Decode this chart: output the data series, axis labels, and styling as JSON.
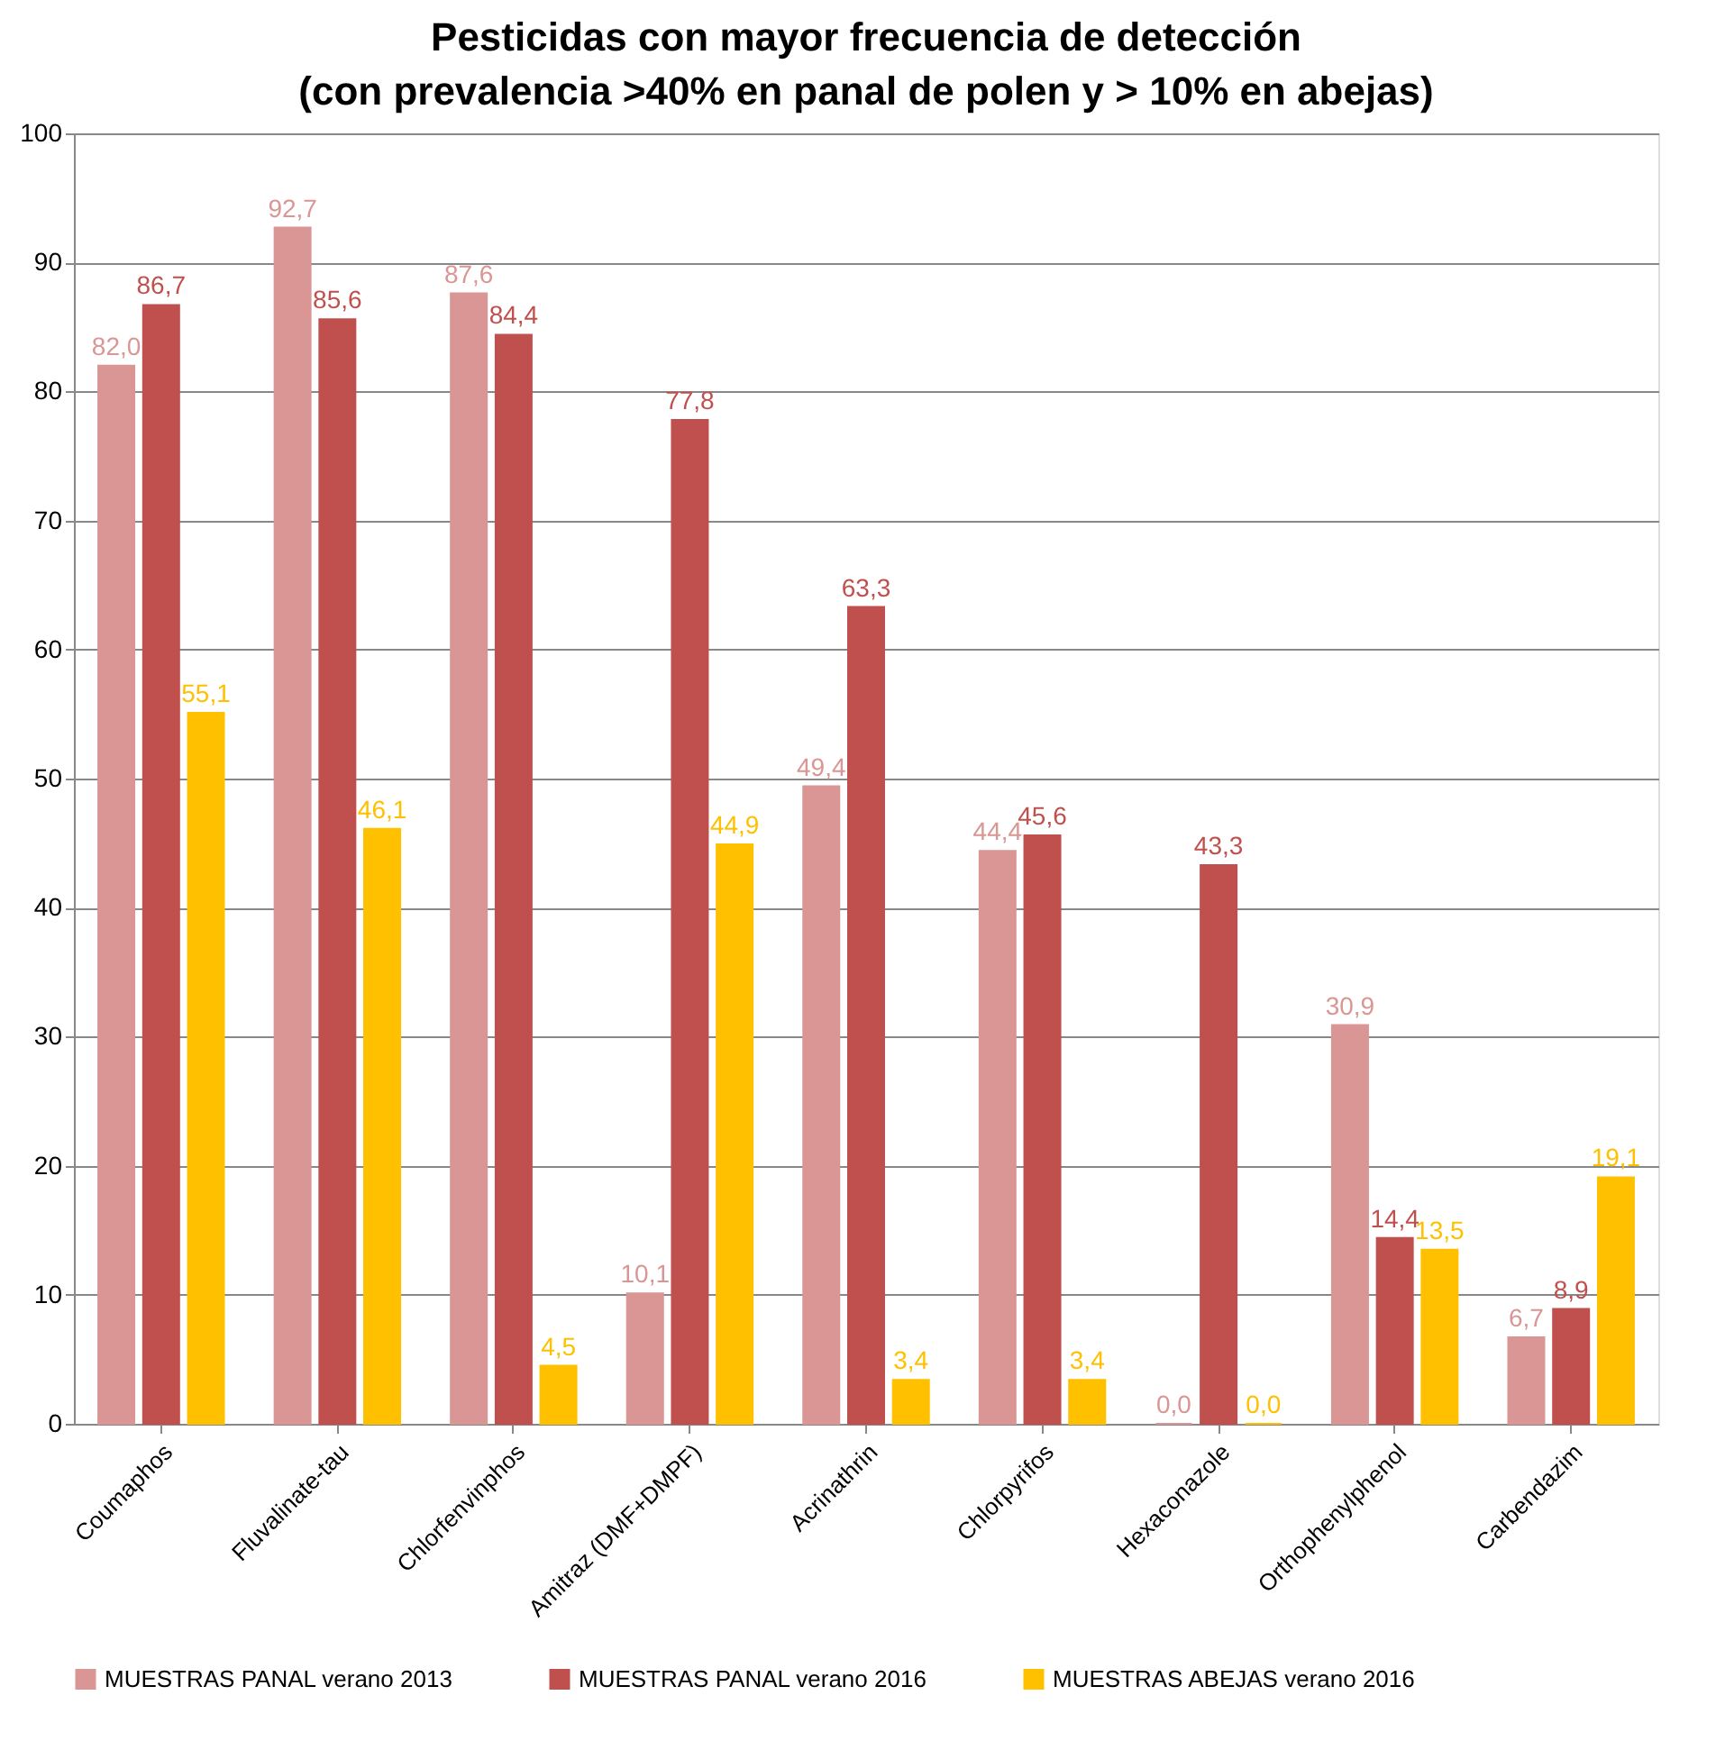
{
  "chart_data": {
    "type": "bar",
    "title": "Pesticidas con mayor frecuencia de detección",
    "subtitle": "(con prevalencia >40% en panal de polen y > 10% en abejas)",
    "categories": [
      "Coumaphos",
      "Fluvalinate-tau",
      "Chlorfenvinphos",
      "Amitraz (DMF+DMPF)",
      "Acrinathrin",
      "Chlorpyrifos",
      "Hexaconazole",
      "Orthophenylphenol",
      "Carbendazim"
    ],
    "series": [
      {
        "name": "MUESTRAS PANAL verano 2013",
        "color": "#d99694",
        "values": [
          82.0,
          92.7,
          87.6,
          10.1,
          49.4,
          44.4,
          0.0,
          30.9,
          6.7
        ],
        "value_labels": [
          "82,0",
          "92,7",
          "87,6",
          "10,1",
          "49,4",
          "44,4",
          "0,0",
          "30,9",
          "6,7"
        ]
      },
      {
        "name": "MUESTRAS PANAL verano 2016",
        "color": "#c0504d",
        "values": [
          86.7,
          85.6,
          84.4,
          77.8,
          63.3,
          45.6,
          43.3,
          14.4,
          8.9
        ],
        "value_labels": [
          "86,7",
          "85,6",
          "84,4",
          "77,8",
          "63,3",
          "45,6",
          "43,3",
          "14,4",
          "8,9"
        ]
      },
      {
        "name": "MUESTRAS ABEJAS verano 2016",
        "color": "#ffc000",
        "values": [
          55.1,
          46.1,
          4.5,
          44.9,
          3.4,
          3.4,
          0.0,
          13.5,
          19.1
        ],
        "value_labels": [
          "55,1",
          "46,1",
          "4,5",
          "44,9",
          "3,4",
          "3,4",
          "0,0",
          "13,5",
          "19,1"
        ]
      }
    ],
    "ylim": [
      0,
      100
    ],
    "yticks": [
      0,
      10,
      20,
      30,
      40,
      50,
      60,
      70,
      80,
      90,
      100
    ],
    "grid": "y",
    "legend": "bottom"
  }
}
